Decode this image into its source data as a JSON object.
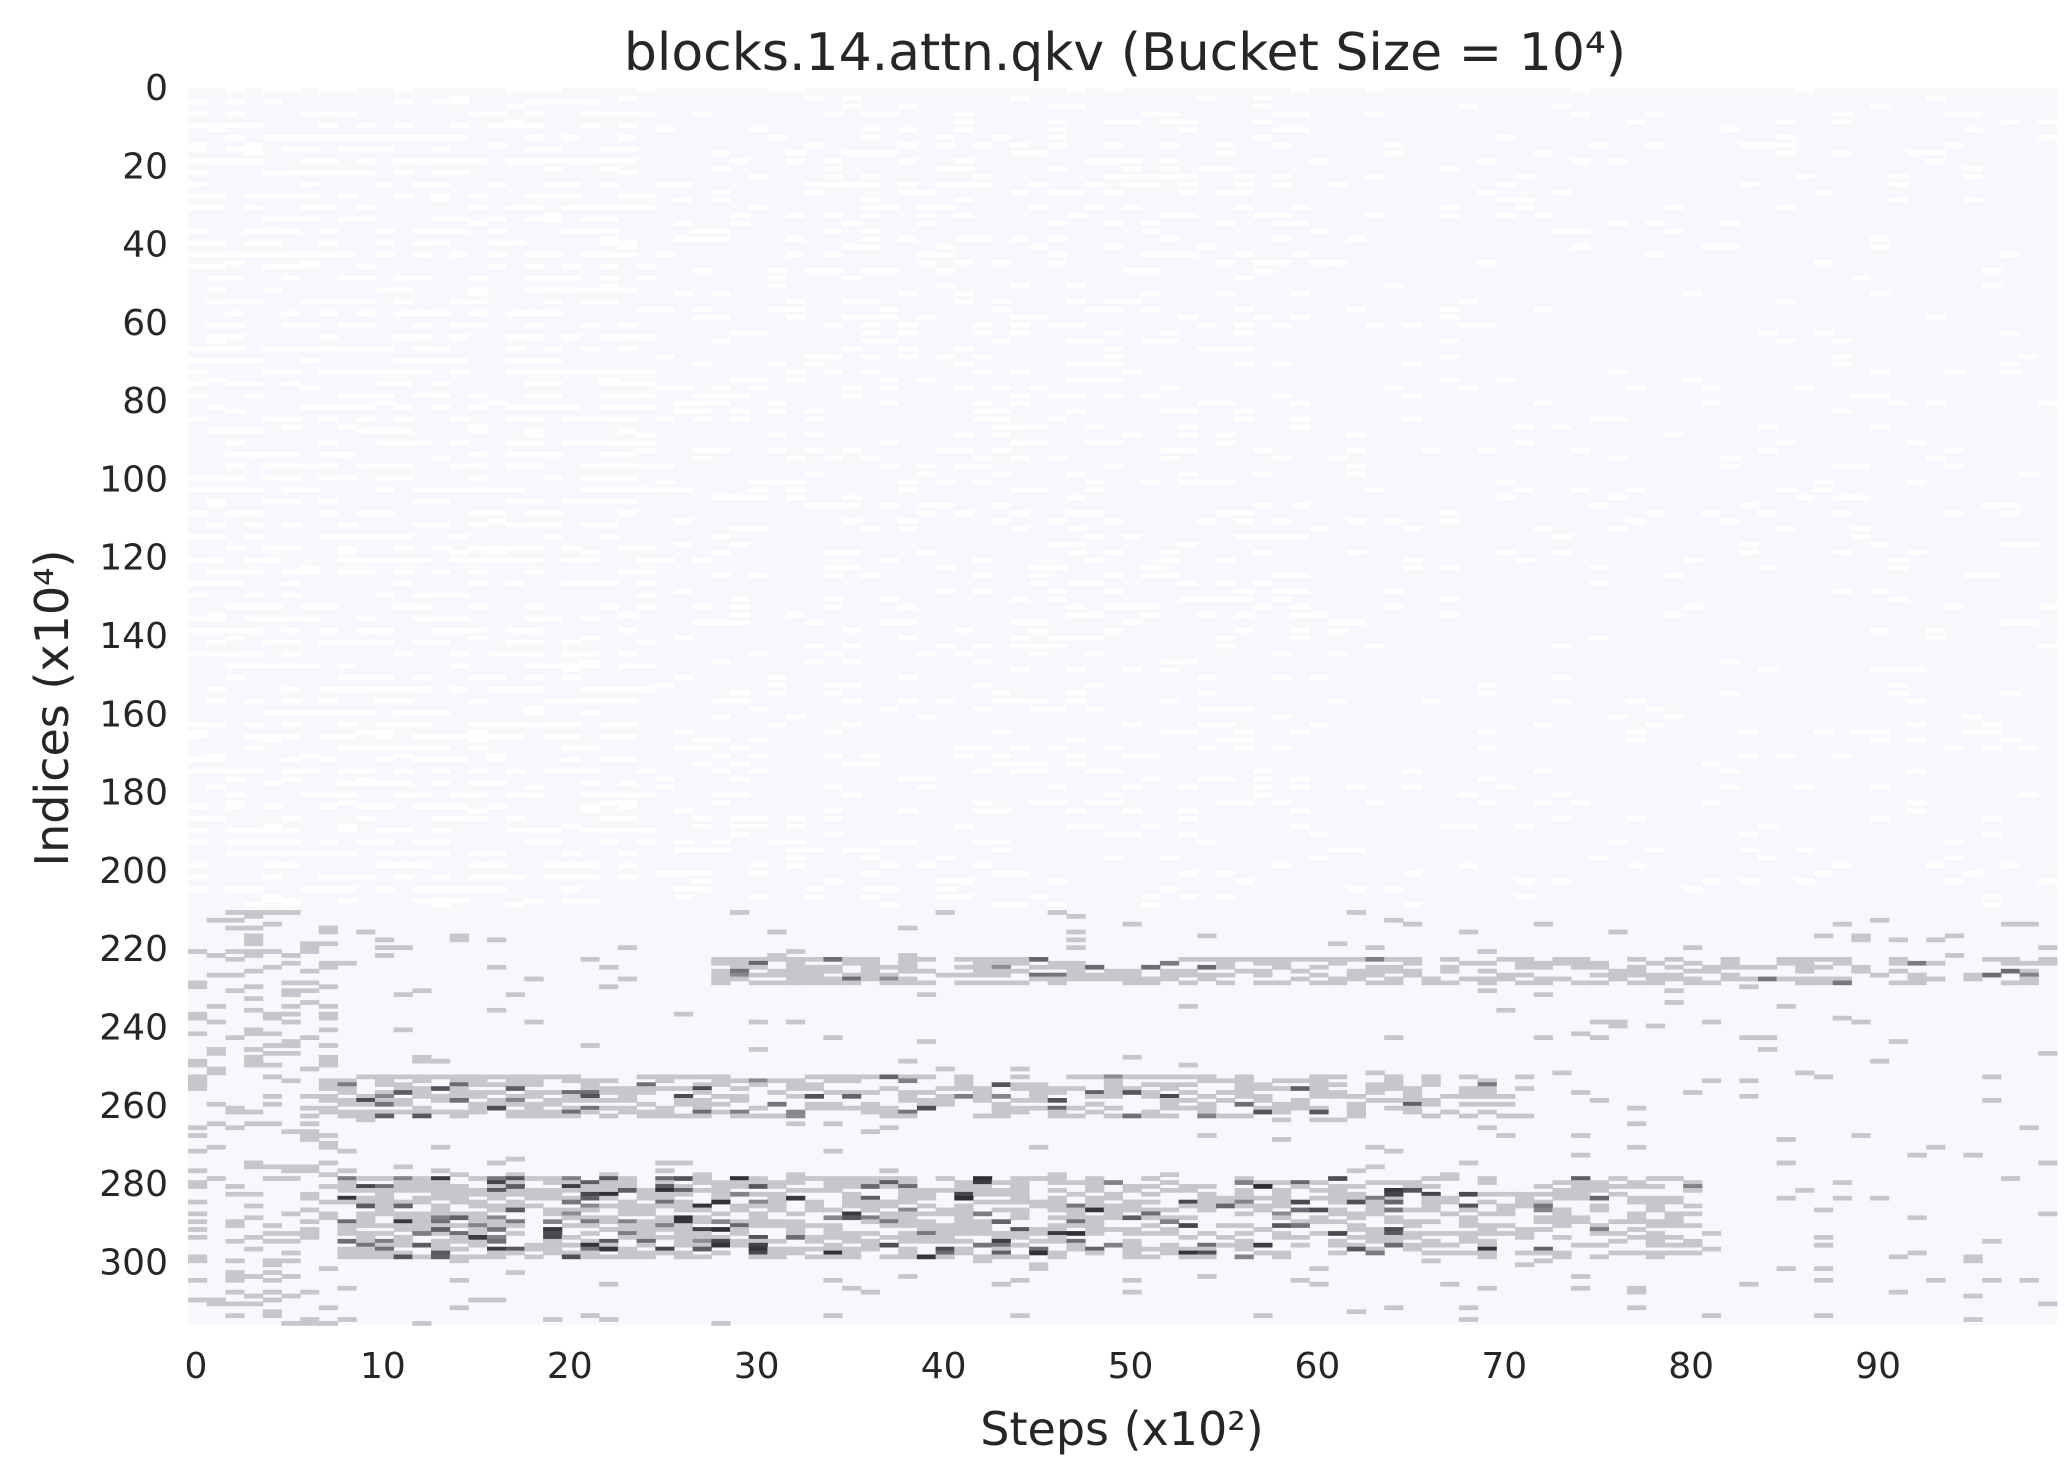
{
  "chart_data": {
    "type": "heatmap",
    "title": "blocks.14.attn.qkv (Bucket Size = 10⁴)",
    "xlabel": "Steps (x10²)",
    "ylabel": "Indices (x10⁴)",
    "xlim": [
      0,
      100
    ],
    "ylim": [
      0,
      316
    ],
    "y_inverted": true,
    "x_ticks": [
      "0",
      "10",
      "20",
      "30",
      "40",
      "50",
      "60",
      "70",
      "80",
      "90"
    ],
    "y_ticks": [
      "0",
      "20",
      "40",
      "60",
      "80",
      "100",
      "120",
      "140",
      "160",
      "180",
      "200",
      "220",
      "240",
      "260",
      "280",
      "300"
    ],
    "grid": false,
    "colormap": "white to black (density)",
    "colors": {
      "background": "#f8f8fc",
      "low": "#ffffff",
      "mid": "#c9c8cd",
      "high": "#000000"
    },
    "bands": [
      {
        "name": "dense band 1",
        "y_range": [
          222,
          228
        ],
        "x_range": [
          28,
          99
        ],
        "intensity": 0.3
      },
      {
        "name": "dense band 2",
        "y_range": [
          252,
          262
        ],
        "x_range": [
          8,
          70
        ],
        "intensity": 0.55
      },
      {
        "name": "dense band 3",
        "y_range": [
          278,
          298
        ],
        "x_range": [
          8,
          80
        ],
        "intensity": 0.75
      }
    ]
  }
}
